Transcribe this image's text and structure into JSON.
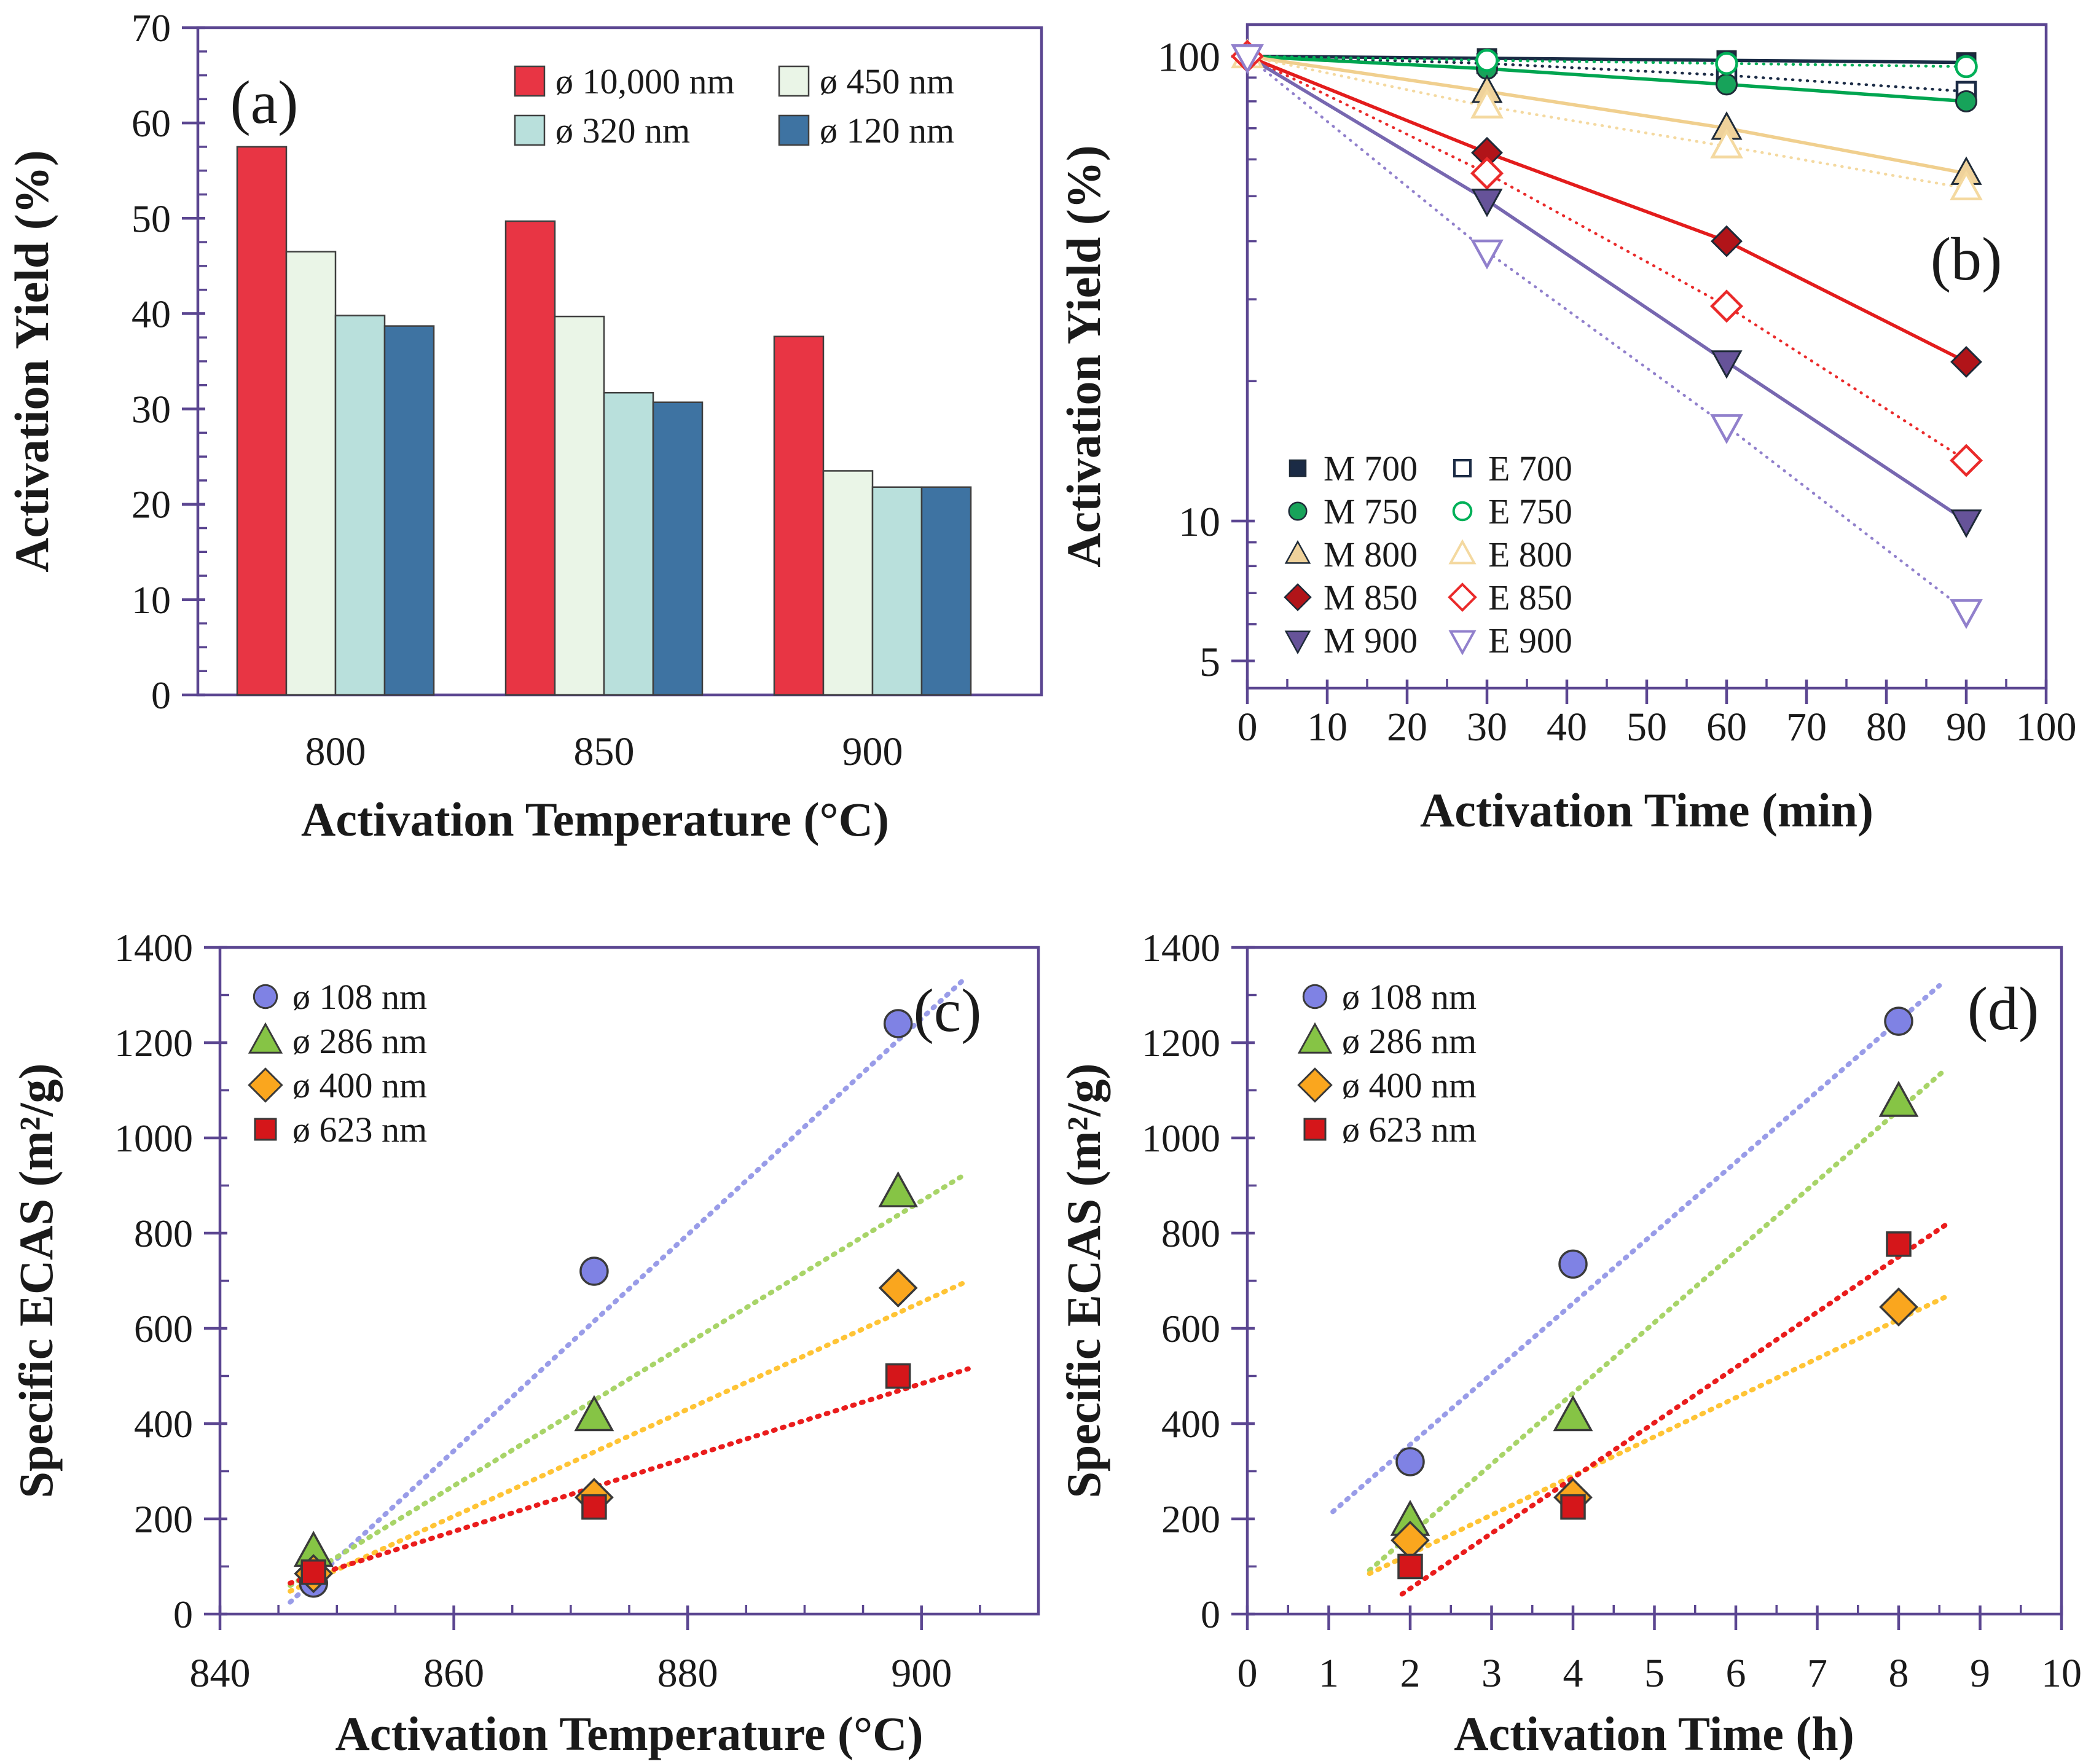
{
  "figure": {
    "background": "#ffffff",
    "axis_color": "#5b4691",
    "text_color": "#1a1a1a",
    "panel_labels": [
      "(a)",
      "(b)",
      "(c)",
      "(d)"
    ]
  },
  "chart_data": [
    {
      "id": "a",
      "type": "bar",
      "panel_label": "(a)",
      "xlabel": "Activation Temperature (°C)",
      "ylabel": "Activation Yield (%)",
      "categories": [
        "800",
        "850",
        "900"
      ],
      "ylim": [
        0,
        70
      ],
      "ytick_step": 10,
      "yminor_step": 2.5,
      "grid": false,
      "legend_position": "top-center-2col",
      "series": [
        {
          "name": "ø 10,000 nm",
          "color": "#e83544",
          "values": [
            57.5,
            49.7,
            37.6
          ]
        },
        {
          "name": "ø 450 nm",
          "color": "#eaf5e7",
          "values": [
            46.5,
            39.7,
            23.5
          ]
        },
        {
          "name": "ø 320 nm",
          "color": "#b9e0dc",
          "values": [
            39.8,
            31.7,
            21.8
          ]
        },
        {
          "name": "ø 120 nm",
          "color": "#3e73a2",
          "values": [
            38.7,
            30.7,
            21.8
          ]
        }
      ]
    },
    {
      "id": "b",
      "type": "line",
      "panel_label": "(b)",
      "xlabel": "Activation Time (min)",
      "ylabel": "Activation Yield (%)",
      "x": [
        0,
        30,
        60,
        90
      ],
      "xlim": [
        0,
        100
      ],
      "xtick_step": 10,
      "xminor_step": 5,
      "yscale": "log",
      "ylim": [
        4.37,
        117
      ],
      "yticks_labeled": [
        100,
        10,
        5
      ],
      "yticks_minor": [
        90,
        80,
        70,
        60,
        50,
        40,
        30,
        20,
        9,
        8,
        7,
        6
      ],
      "grid": false,
      "legend_position": "bottom-left-2col",
      "series": [
        {
          "name": "M 700",
          "color": "#1b2b45",
          "line": "solid",
          "marker": "square",
          "fill": "filled",
          "values": [
            100,
            99,
            98,
            97
          ]
        },
        {
          "name": "E 700",
          "color": "#1b2b45",
          "line": "dotted",
          "marker": "square",
          "fill": "open",
          "values": [
            100,
            96.5,
            91,
            84
          ]
        },
        {
          "name": "M 750",
          "color": "#00a550",
          "line": "solid",
          "marker": "circle",
          "fill": "filled",
          "marker_color": "#17a35a",
          "values": [
            100,
            94,
            87,
            80
          ]
        },
        {
          "name": "E 750",
          "color": "#00b058",
          "line": "dotted",
          "marker": "circle",
          "fill": "open",
          "values": [
            100,
            98,
            96.5,
            95
          ]
        },
        {
          "name": "M 800",
          "color": "#f0cf8e",
          "line": "solid",
          "marker": "triangle-up",
          "fill": "filled",
          "marker_color": "#efd29b",
          "values": [
            100,
            84,
            70,
            56
          ]
        },
        {
          "name": "E 800",
          "color": "#f4d9a0",
          "line": "dotted",
          "marker": "triangle-up",
          "fill": "open",
          "values": [
            100,
            78,
            64,
            52
          ]
        },
        {
          "name": "M 850",
          "color": "#e31c1c",
          "line": "solid",
          "marker": "diamond",
          "fill": "filled",
          "marker_color": "#b11419",
          "values": [
            100,
            62,
            40,
            22
          ]
        },
        {
          "name": "E 850",
          "color": "#ea2a2a",
          "line": "dotted",
          "marker": "diamond",
          "fill": "open",
          "values": [
            100,
            56,
            29,
            13.5
          ]
        },
        {
          "name": "M 900",
          "color": "#7767b0",
          "line": "solid",
          "marker": "triangle-down",
          "fill": "filled",
          "marker_color": "#665399",
          "values": [
            100,
            49,
            22,
            10
          ]
        },
        {
          "name": "E 900",
          "color": "#9180cc",
          "line": "dotted",
          "marker": "triangle-down",
          "fill": "open",
          "values": [
            100,
            38,
            16,
            6.4
          ]
        }
      ]
    },
    {
      "id": "c",
      "type": "scatter",
      "panel_label": "(c)",
      "xlabel": "Activation Temperature (°C)",
      "ylabel": "Specific ECAS (m²/g)",
      "xlim": [
        840,
        910
      ],
      "xticks": [
        840,
        860,
        880,
        900
      ],
      "xminor_step": 5,
      "ylim": [
        0,
        1400
      ],
      "ytick_step": 200,
      "yminor_step": 100,
      "grid": false,
      "legend_position": "top-left-column",
      "series": [
        {
          "name": "ø 108 nm",
          "marker": "circle",
          "color": "#7f82e4",
          "trend_color": "#999ce8",
          "points": [
            [
              848,
              65
            ],
            [
              872,
              720
            ],
            [
              898,
              1240
            ]
          ],
          "trend": [
            [
              846,
              25
            ],
            [
              903.5,
              1330
            ]
          ]
        },
        {
          "name": "ø 286 nm",
          "marker": "triangle-up",
          "color": "#86c445",
          "trend_color": "#a8d468",
          "points": [
            [
              848,
              130
            ],
            [
              872,
              415
            ],
            [
              898,
              885
            ]
          ],
          "trend": [
            [
              846,
              60
            ],
            [
              903.5,
              920
            ]
          ]
        },
        {
          "name": "ø 400 nm",
          "marker": "diamond",
          "color": "#faa61e",
          "trend_color": "#ffc435",
          "points": [
            [
              848,
              85
            ],
            [
              872,
              245
            ],
            [
              898,
              685
            ]
          ],
          "trend": [
            [
              846,
              48
            ],
            [
              904,
              700
            ]
          ]
        },
        {
          "name": "ø 623 nm",
          "marker": "square",
          "color": "#d5161a",
          "trend_color": "#ea1c1c",
          "points": [
            [
              848,
              88
            ],
            [
              872,
              225
            ],
            [
              898,
              500
            ]
          ],
          "trend": [
            [
              846,
              65
            ],
            [
              904,
              515
            ]
          ]
        }
      ]
    },
    {
      "id": "d",
      "type": "scatter",
      "panel_label": "(d)",
      "xlabel": "Activation Time (h)",
      "ylabel": "Specific ECAS (m²/g)",
      "xlim": [
        0,
        10
      ],
      "xtick_step": 1,
      "xminor_step": 0.5,
      "ylim": [
        0,
        1400
      ],
      "ytick_step": 200,
      "yminor_step": 100,
      "grid": false,
      "legend_position": "top-left-column",
      "series": [
        {
          "name": "ø 108 nm",
          "marker": "circle",
          "color": "#7f82e4",
          "trend_color": "#999ce8",
          "points": [
            [
              2,
              320
            ],
            [
              4,
              735
            ],
            [
              8,
              1245
            ]
          ],
          "trend": [
            [
              1.05,
              215
            ],
            [
              8.5,
              1320
            ]
          ]
        },
        {
          "name": "ø 286 nm",
          "marker": "triangle-up",
          "color": "#86c445",
          "trend_color": "#a8d468",
          "points": [
            [
              2,
              195
            ],
            [
              4,
              415
            ],
            [
              8,
              1075
            ]
          ],
          "trend": [
            [
              1.5,
              92
            ],
            [
              8.55,
              1140
            ]
          ]
        },
        {
          "name": "ø 400 nm",
          "marker": "diamond",
          "color": "#faa61e",
          "trend_color": "#ffc435",
          "points": [
            [
              2,
              155
            ],
            [
              4,
              245
            ],
            [
              8,
              645
            ]
          ],
          "trend": [
            [
              1.5,
              85
            ],
            [
              8.6,
              668
            ]
          ]
        },
        {
          "name": "ø 623 nm",
          "marker": "square",
          "color": "#d5161a",
          "trend_color": "#ea1c1c",
          "points": [
            [
              2,
              100
            ],
            [
              4,
              225
            ],
            [
              8,
              777
            ]
          ],
          "trend": [
            [
              1.9,
              42
            ],
            [
              8.6,
              820
            ]
          ]
        }
      ]
    }
  ]
}
